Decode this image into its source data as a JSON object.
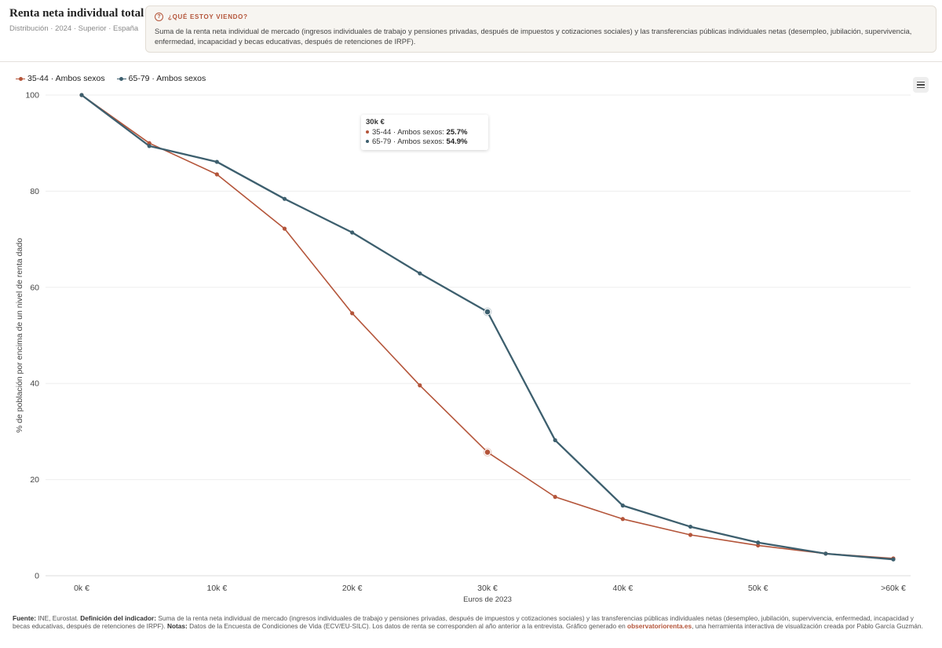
{
  "header": {
    "title": "Renta neta individual total",
    "subtitle": "Distribución · 2024 · Superior · España",
    "info_heading": "¿QUÉ ESTOY VIENDO?",
    "info_icon": "question-circle-icon",
    "info_text": "Suma de la renta neta individual de mercado (ingresos individuales de trabajo y pensiones privadas, después de impuestos y cotizaciones sociales) y las transferencias públicas individuales netas (desempleo, jubilación, supervivencia, enfermedad, incapacidad y becas educativas, después de retenciones de IRPF)."
  },
  "toolbar": {
    "menu_icon": "hamburger-menu-icon"
  },
  "colors": {
    "series1": "#b4553a",
    "series2": "#3d5f6e",
    "grid": "#eeeeee",
    "accent": "#b4553a"
  },
  "chart_data": {
    "type": "line",
    "ylabel": "% de población por encima de un nivel de renta dado",
    "xlabel": "Euros de 2023",
    "ylim": [
      0,
      100
    ],
    "yticks": [
      0,
      20,
      40,
      60,
      80,
      100
    ],
    "xticks": [
      {
        "x": 0,
        "label": "0k €"
      },
      {
        "x": 10,
        "label": "10k €"
      },
      {
        "x": 20,
        "label": "20k €"
      },
      {
        "x": 30,
        "label": "30k €"
      },
      {
        "x": 40,
        "label": "40k €"
      },
      {
        "x": 50,
        "label": "50k €"
      },
      {
        "x": 60,
        "label": ">60k €"
      }
    ],
    "x": [
      0,
      5,
      10,
      15,
      20,
      25,
      30,
      35,
      40,
      45,
      50,
      55,
      60
    ],
    "series": [
      {
        "name": "35-44 · Ambos sexos",
        "color": "#b4553a",
        "values": [
          100,
          90,
          83.5,
          72.2,
          54.6,
          39.6,
          25.7,
          16.4,
          11.8,
          8.5,
          6.3,
          4.6,
          3.6
        ]
      },
      {
        "name": "65-79 · Ambos sexos",
        "color": "#3d5f6e",
        "values": [
          100,
          89.4,
          86.1,
          78.4,
          71.4,
          62.9,
          54.9,
          28.2,
          14.6,
          10.2,
          6.9,
          4.6,
          3.4
        ]
      }
    ],
    "highlight_x": 30
  },
  "tooltip": {
    "title": "30k €",
    "rows": [
      {
        "label": "35-44 · Ambos sexos:",
        "value": "25.7%"
      },
      {
        "label": "65-79 · Ambos sexos:",
        "value": "54.9%"
      }
    ]
  },
  "footer": {
    "source_label": "Fuente:",
    "source": "INE, Eurostat.",
    "def_label": "Definición del indicador:",
    "def_text": "Suma de la renta neta individual de mercado (ingresos individuales de trabajo y pensiones privadas, después de impuestos y cotizaciones sociales) y las transferencias públicas individuales netas (desempleo, jubilación, supervivencia, enfermedad, incapacidad y becas educativas, después de retenciones de IRPF).",
    "notes_label": "Notas:",
    "notes_text": "Datos de la Encuesta de Condiciones de Vida (ECV/EU-SILC). Los datos de renta se corresponden al año anterior a la entrevista. Gráfico generado en",
    "site": "observatoriorenta.es",
    "tail": ", una herramienta interactiva de visualización creada por Pablo García Guzmán."
  }
}
